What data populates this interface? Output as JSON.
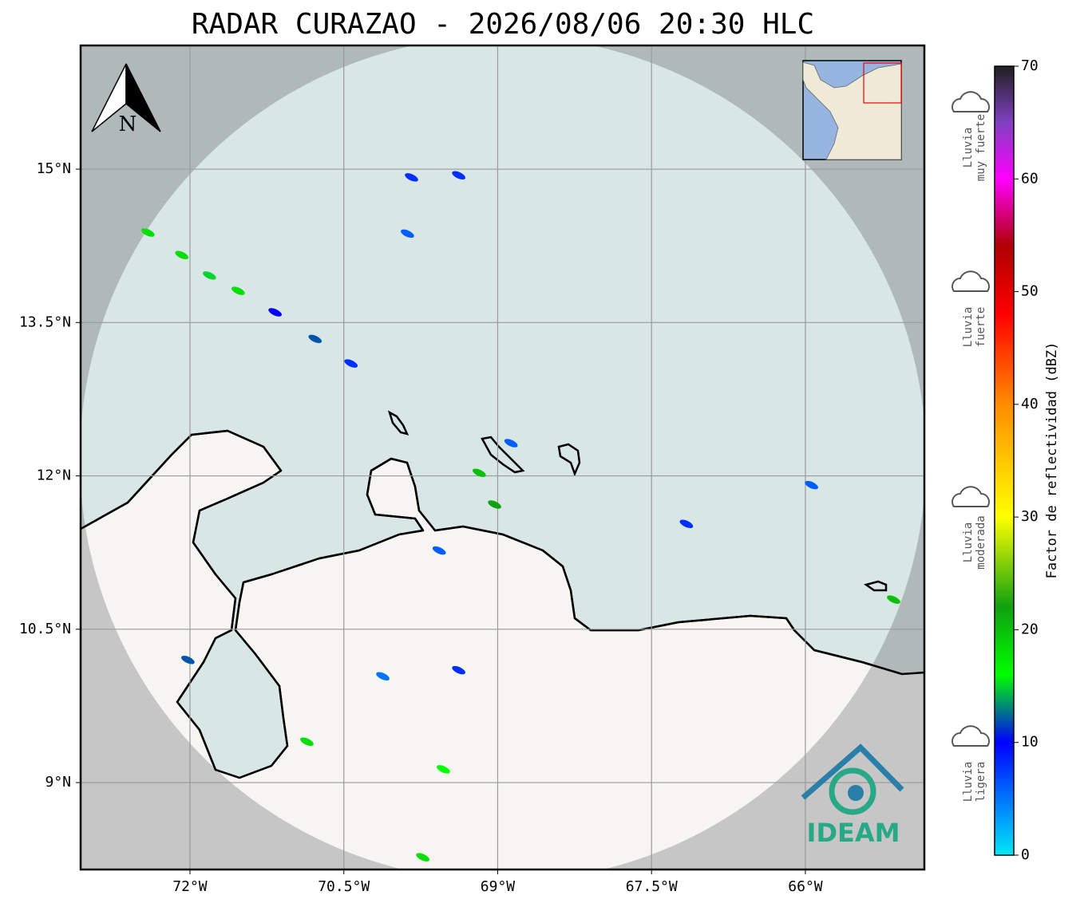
{
  "map": {
    "title": "RADAR CURAZAO - 2026/08/06 20:30 HLC",
    "xlim": [
      -73.066,
      -64.84
    ],
    "ylim": [
      8.15,
      16.21
    ],
    "xticks": [
      {
        "value": -72,
        "label": "72°W"
      },
      {
        "value": -70.5,
        "label": "70.5°W"
      },
      {
        "value": -69,
        "label": "69°W"
      },
      {
        "value": -67.5,
        "label": "67.5°W"
      },
      {
        "value": -66,
        "label": "66°W"
      }
    ],
    "yticks": [
      {
        "value": 15,
        "label": "15°N"
      },
      {
        "value": 13.5,
        "label": "13.5°N"
      },
      {
        "value": 12,
        "label": "12°N"
      },
      {
        "value": 10.5,
        "label": "10.5°N"
      },
      {
        "value": 9,
        "label": "9°N"
      }
    ],
    "grid": true,
    "north_label": "N",
    "logo_text": "IDEAM",
    "colorbar": {
      "label": "Factor de reflectividad (dBZ)",
      "lim": [
        0,
        70
      ],
      "ticks": [
        0,
        10,
        20,
        30,
        40,
        50,
        60,
        70
      ],
      "colors": [
        {
          "value": 0,
          "color": "#00e8f8"
        },
        {
          "value": 10,
          "color": "#0000ff"
        },
        {
          "value": 16,
          "color": "#00ff00"
        },
        {
          "value": 22,
          "color": "#10a010"
        },
        {
          "value": 30,
          "color": "#ffff00"
        },
        {
          "value": 40,
          "color": "#ff8c00"
        },
        {
          "value": 48,
          "color": "#ff0000"
        },
        {
          "value": 54,
          "color": "#b00000"
        },
        {
          "value": 60,
          "color": "#ff00ff"
        },
        {
          "value": 65,
          "color": "#8040c0"
        },
        {
          "value": 70,
          "color": "#202020"
        }
      ]
    },
    "rain_levels": [
      {
        "lines": [
          "Lluvia",
          "muy fuerte"
        ]
      },
      {
        "lines": [
          "Lluvia",
          "fuerte"
        ]
      },
      {
        "lines": [
          "Lluvia",
          "moderada"
        ]
      },
      {
        "lines": [
          "Lluvia",
          "ligera"
        ]
      }
    ],
    "echoes": [
      {
        "lon": -72.41,
        "lat": 14.38,
        "dbz": 18
      },
      {
        "lon": -72.08,
        "lat": 14.16,
        "dbz": 18
      },
      {
        "lon": -71.81,
        "lat": 13.96,
        "dbz": 15
      },
      {
        "lon": -71.53,
        "lat": 13.81,
        "dbz": 18
      },
      {
        "lon": -71.17,
        "lat": 13.6,
        "dbz": 10
      },
      {
        "lon": -70.78,
        "lat": 13.34,
        "dbz": 12
      },
      {
        "lon": -70.43,
        "lat": 13.1,
        "dbz": 8
      },
      {
        "lon": -69.84,
        "lat": 14.92,
        "dbz": 8
      },
      {
        "lon": -69.38,
        "lat": 14.94,
        "dbz": 8
      },
      {
        "lon": -69.88,
        "lat": 14.37,
        "dbz": 6
      },
      {
        "lon": -68.87,
        "lat": 12.32,
        "dbz": 6
      },
      {
        "lon": -69.18,
        "lat": 12.03,
        "dbz": 20
      },
      {
        "lon": -69.03,
        "lat": 11.72,
        "dbz": 22
      },
      {
        "lon": -67.16,
        "lat": 11.53,
        "dbz": 8
      },
      {
        "lon": -69.57,
        "lat": 11.27,
        "dbz": 6
      },
      {
        "lon": -72.02,
        "lat": 10.2,
        "dbz": 12
      },
      {
        "lon": -70.12,
        "lat": 10.04,
        "dbz": 5
      },
      {
        "lon": -69.38,
        "lat": 10.1,
        "dbz": 8
      },
      {
        "lon": -69.53,
        "lat": 9.13,
        "dbz": 16
      },
      {
        "lon": -70.86,
        "lat": 9.4,
        "dbz": 18
      },
      {
        "lon": -65.14,
        "lat": 10.79,
        "dbz": 20
      },
      {
        "lon": -65.94,
        "lat": 11.91,
        "dbz": 6
      },
      {
        "lon": -69.73,
        "lat": 8.27,
        "dbz": 18
      }
    ]
  }
}
